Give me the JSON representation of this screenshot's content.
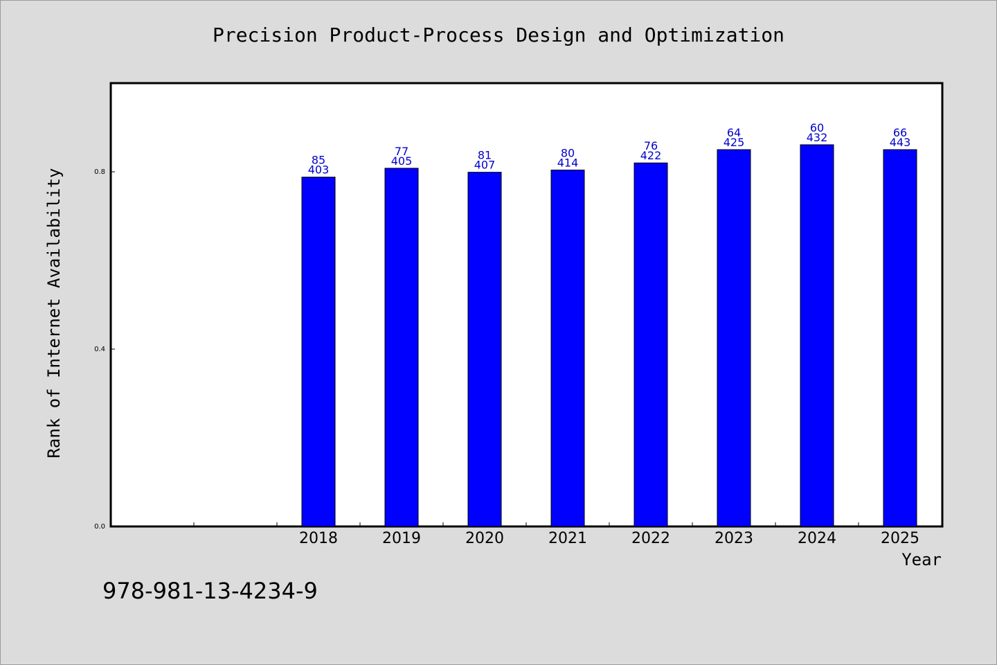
{
  "chart_data": {
    "type": "bar",
    "title": "Precision Product-Process Design and Optimization",
    "xlabel": "Year",
    "ylabel": "Rank of Internet Availability",
    "categories": [
      "2018",
      "2019",
      "2020",
      "2021",
      "2022",
      "2023",
      "2024",
      "2025"
    ],
    "values": [
      0.788,
      0.808,
      0.799,
      0.804,
      0.82,
      0.85,
      0.861,
      0.85
    ],
    "labels_top": [
      "85",
      "77",
      "81",
      "80",
      "76",
      "64",
      "60",
      "66"
    ],
    "labels_bottom": [
      "403",
      "405",
      "407",
      "414",
      "422",
      "425",
      "432",
      "443"
    ],
    "yticks": [
      "0.0",
      "0.4",
      "0.8"
    ],
    "ytick_values": [
      0.0,
      0.4,
      0.8
    ],
    "ylim": [
      0,
      1.0
    ],
    "x_empty_slots_before": 2,
    "bar_color": "#0000ff",
    "label_color": "#0000cc",
    "grid": false,
    "legend": "none"
  },
  "footer_text": "978-981-13-4234-9"
}
